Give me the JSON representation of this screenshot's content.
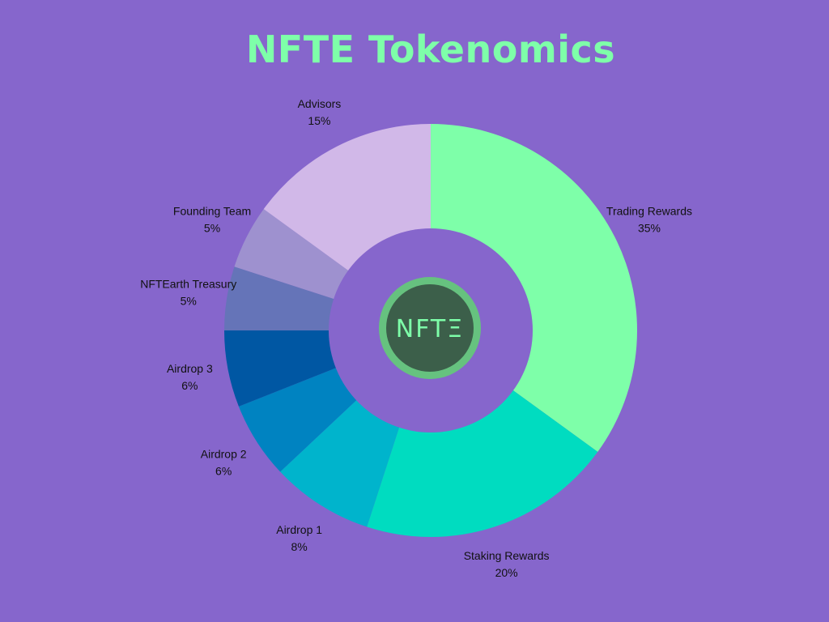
{
  "chart_data": {
    "type": "pie",
    "title": "NFTE Tokenomics",
    "center_logo_text": "NFTΞ",
    "slices": [
      {
        "label": "Trading Rewards",
        "value": 35,
        "value_label": "35%",
        "color": "#7effa9"
      },
      {
        "label": "Staking Rewards",
        "value": 20,
        "value_label": "20%",
        "color": "#00dcc0"
      },
      {
        "label": "Airdrop 1",
        "value": 8,
        "value_label": "8%",
        "color": "#00b4cc"
      },
      {
        "label": "Airdrop 2",
        "value": 6,
        "value_label": "6%",
        "color": "#0083c1"
      },
      {
        "label": "Airdrop 3",
        "value": 6,
        "value_label": "6%",
        "color": "#0057a3"
      },
      {
        "label": "NFTEarth Treasury",
        "value": 5,
        "value_label": "5%",
        "color": "#6574b8"
      },
      {
        "label": "Founding Team",
        "value": 5,
        "value_label": "5%",
        "color": "#9e91cf"
      },
      {
        "label": "Advisors",
        "value": 15,
        "value_label": "15%",
        "color": "#d1b8e8"
      }
    ],
    "legend": "none",
    "colors": {
      "background": "#8666cc",
      "title": "#7effa9",
      "hole": "#8666cc"
    }
  }
}
